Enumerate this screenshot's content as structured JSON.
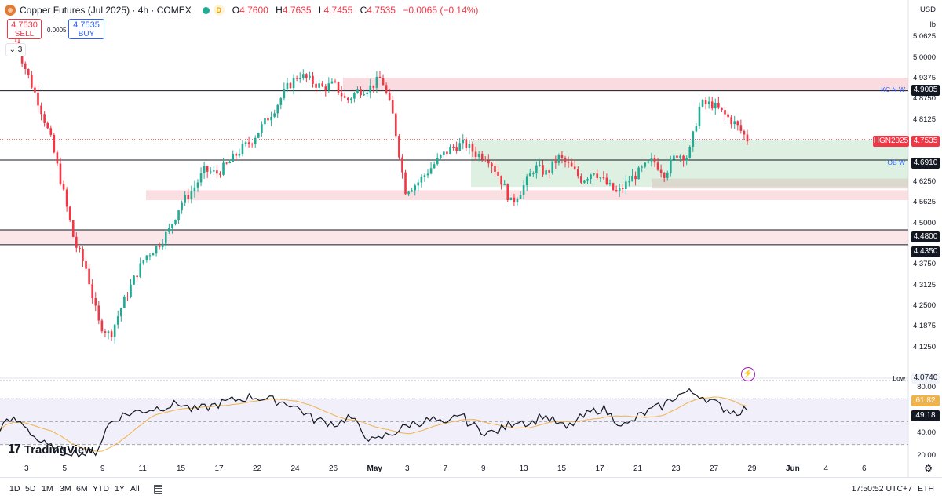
{
  "header": {
    "title": "Copper Futures (Jul 2025) · 4h · COMEX",
    "interval_badge": "D",
    "ohlc": [
      {
        "k": "O",
        "v": "4.7600"
      },
      {
        "k": "H",
        "v": "4.7635"
      },
      {
        "k": "L",
        "v": "4.7455"
      },
      {
        "k": "C",
        "v": "4.7535"
      }
    ],
    "change": "−0.0065 (−0.14%)"
  },
  "trade": {
    "sell_price": "4.7530",
    "sell_label": "SELL",
    "spread": "0.0005",
    "buy_price": "4.7535",
    "buy_label": "BUY"
  },
  "indicators_count": "3",
  "axis": {
    "currency": "USD",
    "unit": "lb",
    "ticks": [
      "5.0625",
      "5.0000",
      "4.9375",
      "4.8750",
      "4.8125",
      "4.6250",
      "4.5625",
      "4.5000",
      "4.3750",
      "4.3125",
      "4.2500",
      "4.1875",
      "4.1250"
    ],
    "tick_values": [
      5.0625,
      5.0,
      4.9375,
      4.875,
      4.8125,
      4.625,
      4.5625,
      4.5,
      4.375,
      4.3125,
      4.25,
      4.1875,
      4.125
    ],
    "labels": {
      "kcnw": "4.9005",
      "symbol": "HGN2025",
      "last": "4.7535",
      "obw": "4.6910",
      "l1": "4.4800",
      "l2": "4.4350",
      "low_price": "4.0740"
    },
    "rsi_ticks": [
      "80.00",
      "40.00",
      "20.00"
    ],
    "rsi_tick_values": [
      80,
      40,
      20
    ],
    "rsi_value": "61.82",
    "rsi_ma_value": "49.18"
  },
  "tags": {
    "kcnw": "KC N W",
    "obw": "OB W",
    "symbol": "HGN2025",
    "low": "Low"
  },
  "time_axis": [
    {
      "t": "3"
    },
    {
      "t": "5"
    },
    {
      "t": "9"
    },
    {
      "t": "11"
    },
    {
      "t": "15"
    },
    {
      "t": "17"
    },
    {
      "t": "22"
    },
    {
      "t": "24"
    },
    {
      "t": "26"
    },
    {
      "t": "May",
      "bold": true
    },
    {
      "t": "3"
    },
    {
      "t": "7"
    },
    {
      "t": "9"
    },
    {
      "t": "13"
    },
    {
      "t": "15"
    },
    {
      "t": "17"
    },
    {
      "t": "21"
    },
    {
      "t": "23"
    },
    {
      "t": "27"
    },
    {
      "t": "29"
    },
    {
      "t": "Jun",
      "bold": true
    },
    {
      "t": "4"
    },
    {
      "t": "6"
    }
  ],
  "toolbar": {
    "ranges": [
      "1D",
      "5D",
      "1M",
      "3M",
      "6M",
      "YTD",
      "1Y",
      "All"
    ],
    "clock": "17:50:52 UTC+7",
    "session": "ETH"
  },
  "watermark": "TradingView",
  "colors": {
    "up": "#22ab94",
    "down": "#f23645",
    "zone_red": "#f7c9cf",
    "zone_green": "#c8e6cf",
    "rsi": "#131722",
    "rsi_ma": "#f0b34a",
    "rsi_band": "#ebe8f8"
  },
  "chart_data": {
    "type": "candlestick",
    "title": "Copper Futures (Jul 2025) · 4h · COMEX",
    "ylim": [
      4.06,
      5.08
    ],
    "levels": [
      4.9005,
      4.691,
      4.48,
      4.435
    ],
    "zones": [
      {
        "from": 4.9,
        "to": 4.94,
        "color": "red"
      },
      {
        "from": 4.57,
        "to": 4.6,
        "color": "red"
      },
      {
        "from": 4.435,
        "to": 4.48,
        "color": "red"
      },
      {
        "from": 4.61,
        "to": 4.75,
        "color": "green"
      }
    ],
    "close_path": [
      5.05,
      4.95,
      4.86,
      4.75,
      4.6,
      4.44,
      4.36,
      4.2,
      4.16,
      4.25,
      4.33,
      4.4,
      4.43,
      4.48,
      4.56,
      4.6,
      4.66,
      4.65,
      4.68,
      4.72,
      4.75,
      4.8,
      4.85,
      4.91,
      4.95,
      4.93,
      4.91,
      4.92,
      4.87,
      4.9,
      4.91,
      4.94,
      4.82,
      4.6,
      4.62,
      4.66,
      4.7,
      4.73,
      4.74,
      4.71,
      4.7,
      4.64,
      4.56,
      4.61,
      4.67,
      4.65,
      4.7,
      4.67,
      4.63,
      4.66,
      4.62,
      4.59,
      4.63,
      4.66,
      4.69,
      4.65,
      4.71,
      4.7,
      4.86,
      4.86,
      4.83,
      4.8,
      4.7535
    ],
    "rsi": [
      45,
      52,
      48,
      35,
      28,
      25,
      24,
      22,
      24,
      48,
      55,
      58,
      60,
      62,
      64,
      66,
      60,
      62,
      65,
      68,
      70,
      72,
      70,
      68,
      66,
      60,
      52,
      50,
      48,
      55,
      42,
      32,
      38,
      42,
      48,
      50,
      52,
      45,
      58,
      48,
      42,
      40,
      46,
      52,
      48,
      56,
      50,
      44,
      52,
      58,
      62,
      52,
      46,
      55,
      60,
      64,
      72,
      76,
      74,
      68,
      62,
      58,
      61.82
    ],
    "rsi_ylim": [
      14,
      86
    ]
  }
}
